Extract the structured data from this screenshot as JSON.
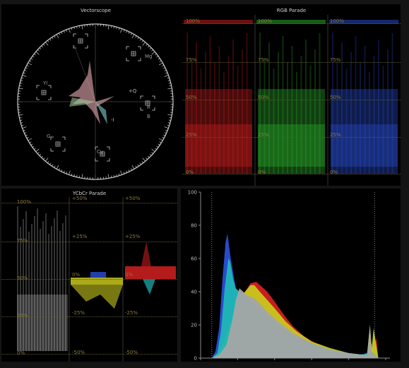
{
  "vectorscope": {
    "title": "Vectorscope",
    "targets": [
      "R",
      "Mg",
      "B",
      "Cy",
      "G",
      "Yl"
    ],
    "axis_label": "+Q",
    "axis_label_2": "-I"
  },
  "rgb_parade": {
    "title": "RGB Parade",
    "levels": [
      "100%",
      "75%",
      "50%",
      "25%",
      "0%"
    ],
    "channels": [
      "red",
      "green",
      "blue"
    ]
  },
  "ycbcr_parade": {
    "title": "YCbCr Parade",
    "y_levels": [
      "100%",
      "75%",
      "50%",
      "25%",
      "0%"
    ],
    "c_levels": [
      "+50%",
      "+25%",
      "0%",
      "-25%",
      "-50%"
    ]
  },
  "colors": {
    "red": "#d32020",
    "green": "#2fb52f",
    "blue": "#2a4fd6",
    "yellow": "#c8c81e",
    "cyan": "#1fb6b6",
    "gray": "#a5a5a5",
    "grid": "#6a6a2a"
  },
  "chart_data": {
    "type": "area",
    "title": "",
    "xlabel": "",
    "ylabel": "",
    "xlim": [
      0,
      1023
    ],
    "ylim": [
      0,
      100
    ],
    "x_ticks": [
      0,
      200,
      400,
      600,
      800,
      1000
    ],
    "y_ticks": [
      0,
      20,
      40,
      60,
      80,
      100
    ],
    "series": [
      {
        "color": "red",
        "x": [
          60,
          90,
          120,
          160,
          200,
          240,
          270,
          300,
          330,
          360,
          400,
          450,
          500,
          560,
          620,
          680,
          740,
          800,
          860,
          900,
          915,
          925,
          935,
          950,
          960
        ],
        "values": [
          0,
          3,
          12,
          22,
          30,
          40,
          45,
          46,
          43,
          40,
          34,
          26,
          19,
          13,
          9,
          6,
          4,
          3,
          2,
          2,
          8,
          4,
          6,
          12,
          0
        ]
      },
      {
        "color": "blue",
        "x": [
          60,
          80,
          100,
          120,
          135,
          145,
          160,
          175,
          190,
          210,
          230,
          250,
          270,
          300,
          340,
          400,
          470,
          550,
          650,
          750,
          850,
          900,
          920,
          940,
          960
        ],
        "values": [
          0,
          4,
          18,
          50,
          70,
          75,
          62,
          52,
          42,
          38,
          40,
          38,
          35,
          32,
          27,
          21,
          15,
          11,
          7,
          4,
          2,
          3,
          10,
          4,
          0
        ]
      },
      {
        "color": "yellow",
        "x": [
          60,
          90,
          120,
          150,
          180,
          210,
          240,
          270,
          290,
          320,
          360,
          400,
          460,
          520,
          600,
          700,
          800,
          880,
          900,
          915,
          925,
          935,
          960
        ],
        "values": [
          0,
          2,
          8,
          18,
          28,
          36,
          40,
          44,
          44,
          40,
          35,
          30,
          22,
          16,
          10,
          6,
          3,
          2,
          3,
          20,
          6,
          18,
          0
        ]
      },
      {
        "color": "cyan",
        "x": [
          60,
          90,
          110,
          130,
          150,
          160,
          175,
          190,
          210,
          230,
          260,
          300,
          360,
          420,
          500,
          600,
          700,
          800,
          880,
          920,
          940,
          960
        ],
        "values": [
          0,
          3,
          16,
          42,
          60,
          58,
          48,
          42,
          40,
          38,
          36,
          32,
          26,
          20,
          14,
          9,
          5,
          3,
          2,
          4,
          2,
          0
        ]
      },
      {
        "color": "gray",
        "x": [
          60,
          100,
          140,
          170,
          190,
          210,
          230,
          250,
          270,
          290,
          320,
          360,
          420,
          500,
          600,
          700,
          800,
          880,
          900,
          915,
          925,
          960
        ],
        "values": [
          0,
          2,
          8,
          22,
          35,
          42,
          40,
          38,
          37,
          36,
          33,
          28,
          22,
          15,
          9,
          5,
          3,
          2,
          2,
          20,
          3,
          0
        ]
      }
    ]
  }
}
